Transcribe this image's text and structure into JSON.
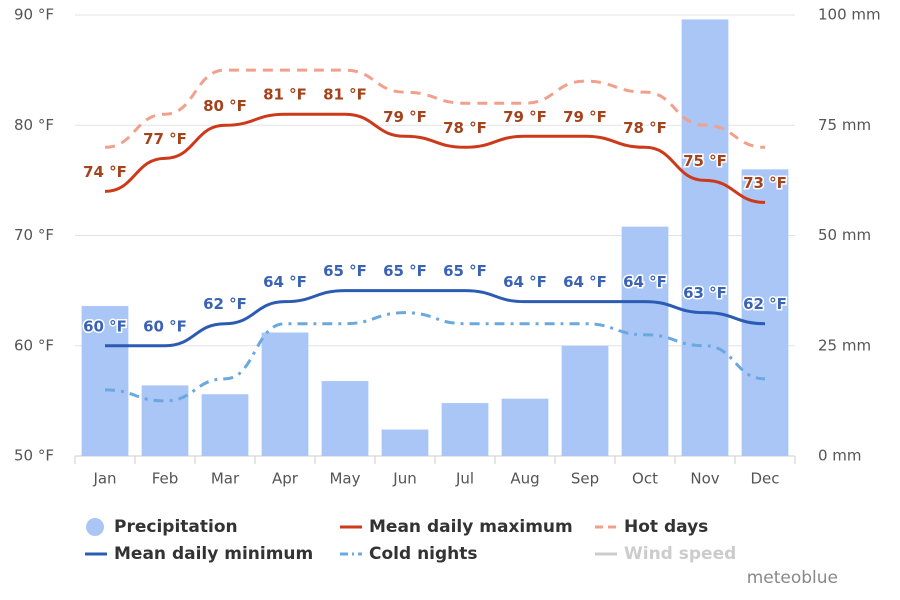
{
  "chart_data": {
    "type": "combo",
    "credit": "meteoblue",
    "categories": [
      "Jan",
      "Feb",
      "Mar",
      "Apr",
      "May",
      "Jun",
      "Jul",
      "Aug",
      "Sep",
      "Oct",
      "Nov",
      "Dec"
    ],
    "ylim": [
      50,
      90
    ],
    "yticks": [
      {
        "value": 50,
        "label": "50 °F"
      },
      {
        "value": 60,
        "label": "60 °F"
      },
      {
        "value": 70,
        "label": "70 °F"
      },
      {
        "value": 80,
        "label": "80 °F"
      },
      {
        "value": 90,
        "label": "90 °F"
      }
    ],
    "y2lim": [
      0,
      100
    ],
    "y2ticks": [
      {
        "value": 0,
        "label": "0 mm"
      },
      {
        "value": 25,
        "label": "25 mm"
      },
      {
        "value": 50,
        "label": "50 mm"
      },
      {
        "value": 75,
        "label": "75 mm"
      },
      {
        "value": 100,
        "label": "100 mm"
      }
    ],
    "grid": true,
    "series": [
      {
        "name": "Precipitation",
        "type": "bar",
        "axis": "y2",
        "color": "#a9c6f7",
        "values": [
          34,
          16,
          14,
          28,
          17,
          6,
          12,
          13,
          25,
          52,
          99,
          65
        ]
      },
      {
        "name": "Mean daily maximum",
        "type": "line",
        "color": "#cc3a1a",
        "label_color": "#a4421c",
        "dash": "solid",
        "values": [
          74,
          77,
          80,
          81,
          81,
          79,
          78,
          79,
          79,
          78,
          75,
          73
        ],
        "value_labels": [
          "74 °F",
          "77 °F",
          "80 °F",
          "81 °F",
          "81 °F",
          "79 °F",
          "78 °F",
          "79 °F",
          "79 °F",
          "78 °F",
          "75 °F",
          "73 °F"
        ]
      },
      {
        "name": "Hot days",
        "type": "line",
        "color": "#f2a08c",
        "dash": "dash",
        "values": [
          78,
          81,
          85,
          85,
          85,
          83,
          82,
          82,
          84,
          83,
          80,
          78
        ]
      },
      {
        "name": "Mean daily minimum",
        "type": "line",
        "color": "#2b5bb3",
        "label_color": "#3a62b5",
        "dash": "solid",
        "values": [
          60,
          60,
          62,
          64,
          65,
          65,
          65,
          64,
          64,
          64,
          63,
          62
        ],
        "value_labels": [
          "60 °F",
          "60 °F",
          "62 °F",
          "64 °F",
          "65 °F",
          "65 °F",
          "65 °F",
          "64 °F",
          "64 °F",
          "64 °F",
          "63 °F",
          "62 °F"
        ]
      },
      {
        "name": "Cold nights",
        "type": "line",
        "color": "#6aa8df",
        "dash": "dashdot",
        "values": [
          56,
          55,
          57,
          62,
          62,
          63,
          62,
          62,
          62,
          61,
          60,
          57
        ]
      },
      {
        "name": "Wind speed",
        "type": "line",
        "color": "#cccccc",
        "visible": false
      }
    ]
  }
}
